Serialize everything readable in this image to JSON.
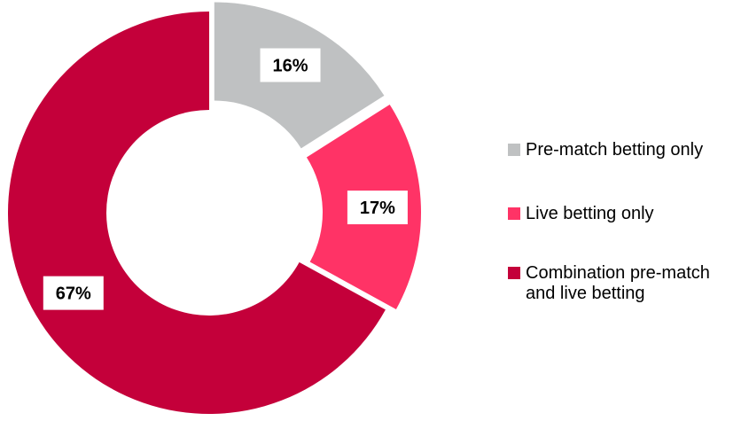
{
  "chart_data": {
    "type": "pie",
    "style": "donut",
    "title": "",
    "categories": [
      "Pre-match betting only",
      "Live betting only",
      "Combination pre-match\nand live betting"
    ],
    "values": [
      16,
      17,
      67
    ],
    "value_labels": [
      "16%",
      "17%",
      "67%"
    ],
    "colors": [
      "#bfc1c2",
      "#ff3366",
      "#c4003a"
    ],
    "exploded": [
      true,
      true,
      false
    ],
    "legend_position": "right"
  }
}
